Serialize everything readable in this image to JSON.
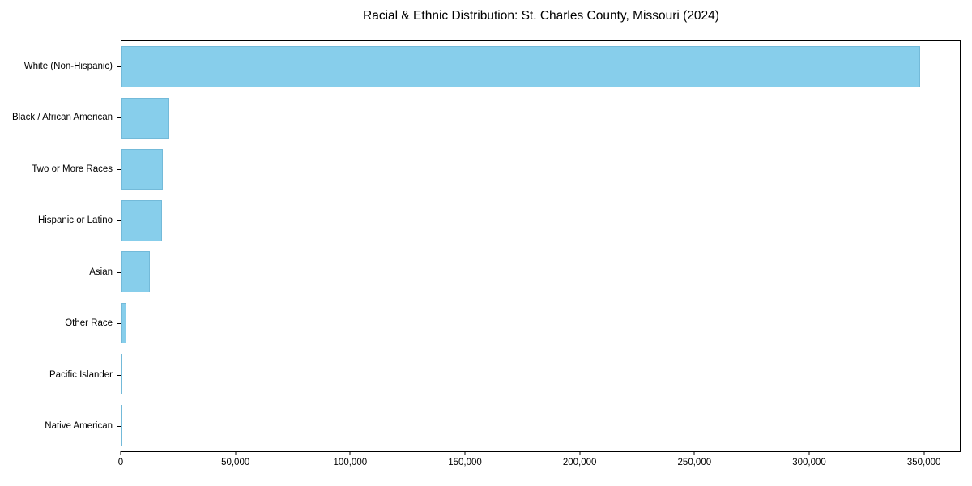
{
  "chart_data": {
    "type": "bar",
    "orientation": "horizontal",
    "title": "Racial & Ethnic Distribution: St. Charles County, Missouri (2024)",
    "xlabel": "",
    "ylabel": "",
    "categories": [
      "White (Non-Hispanic)",
      "Black / African American",
      "Two or More Races",
      "Hispanic or Latino",
      "Asian",
      "Other Race",
      "Pacific Islander",
      "Native American"
    ],
    "values": [
      348500,
      20900,
      18000,
      17700,
      12500,
      2000,
      300,
      200
    ],
    "xlim": [
      0,
      366000
    ],
    "xticks": [
      0,
      50000,
      100000,
      150000,
      200000,
      250000,
      300000,
      350000
    ],
    "xtick_labels": [
      "0",
      "50,000",
      "100,000",
      "150,000",
      "200,000",
      "250,000",
      "300,000",
      "350,000"
    ],
    "bar_color": "#87CEEB",
    "grid": false,
    "legend": null,
    "background_color": "#ffffff",
    "spine_color": "#000000"
  }
}
